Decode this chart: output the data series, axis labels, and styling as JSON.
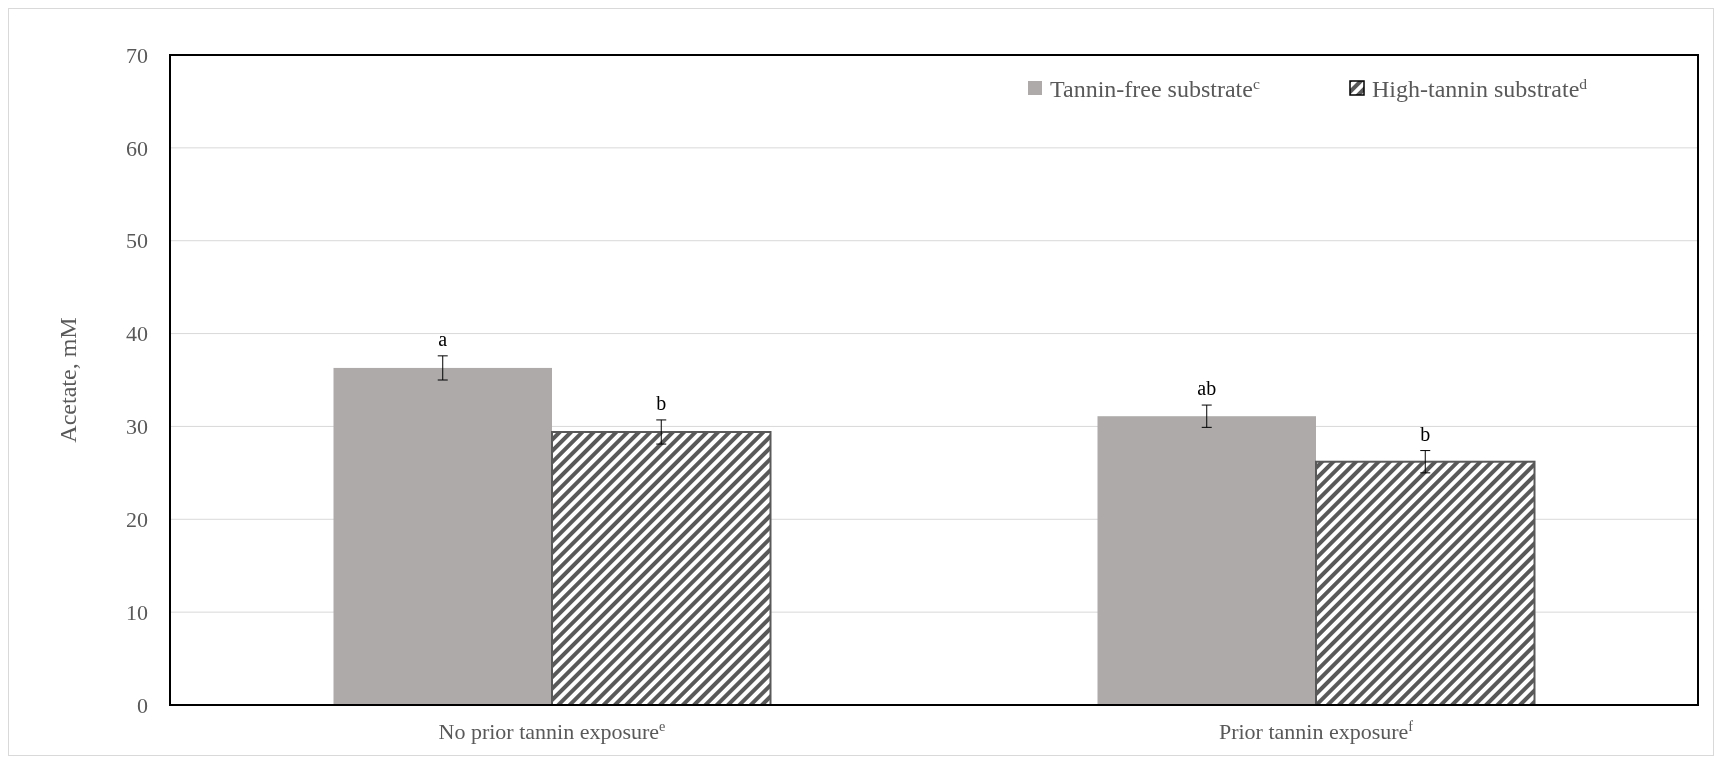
{
  "chart_data": {
    "type": "bar",
    "ylabel": "Acetate, mM",
    "categories": [
      "No prior tannin exposure$^{e}$",
      "Prior tannin exposure$^{f}$"
    ],
    "series": [
      {
        "name": "Tannin-free substrate$^{c}$",
        "color": "#aeaaaa",
        "values": [
          36.3,
          31.1
        ],
        "errors": [
          1.3,
          1.2
        ],
        "value_labels": [
          "a",
          "ab"
        ]
      },
      {
        "name": "High-tannin substrate$^{d}$",
        "color": "#595959",
        "values": [
          29.4,
          26.2
        ],
        "errors": [
          1.3,
          1.2
        ],
        "value_labels": [
          "b",
          "b"
        ]
      }
    ],
    "ylim": [
      0,
      70
    ],
    "yticks": [
      0,
      10,
      20,
      30,
      40,
      50,
      60,
      70
    ],
    "grid": "y",
    "legend": "top right"
  }
}
